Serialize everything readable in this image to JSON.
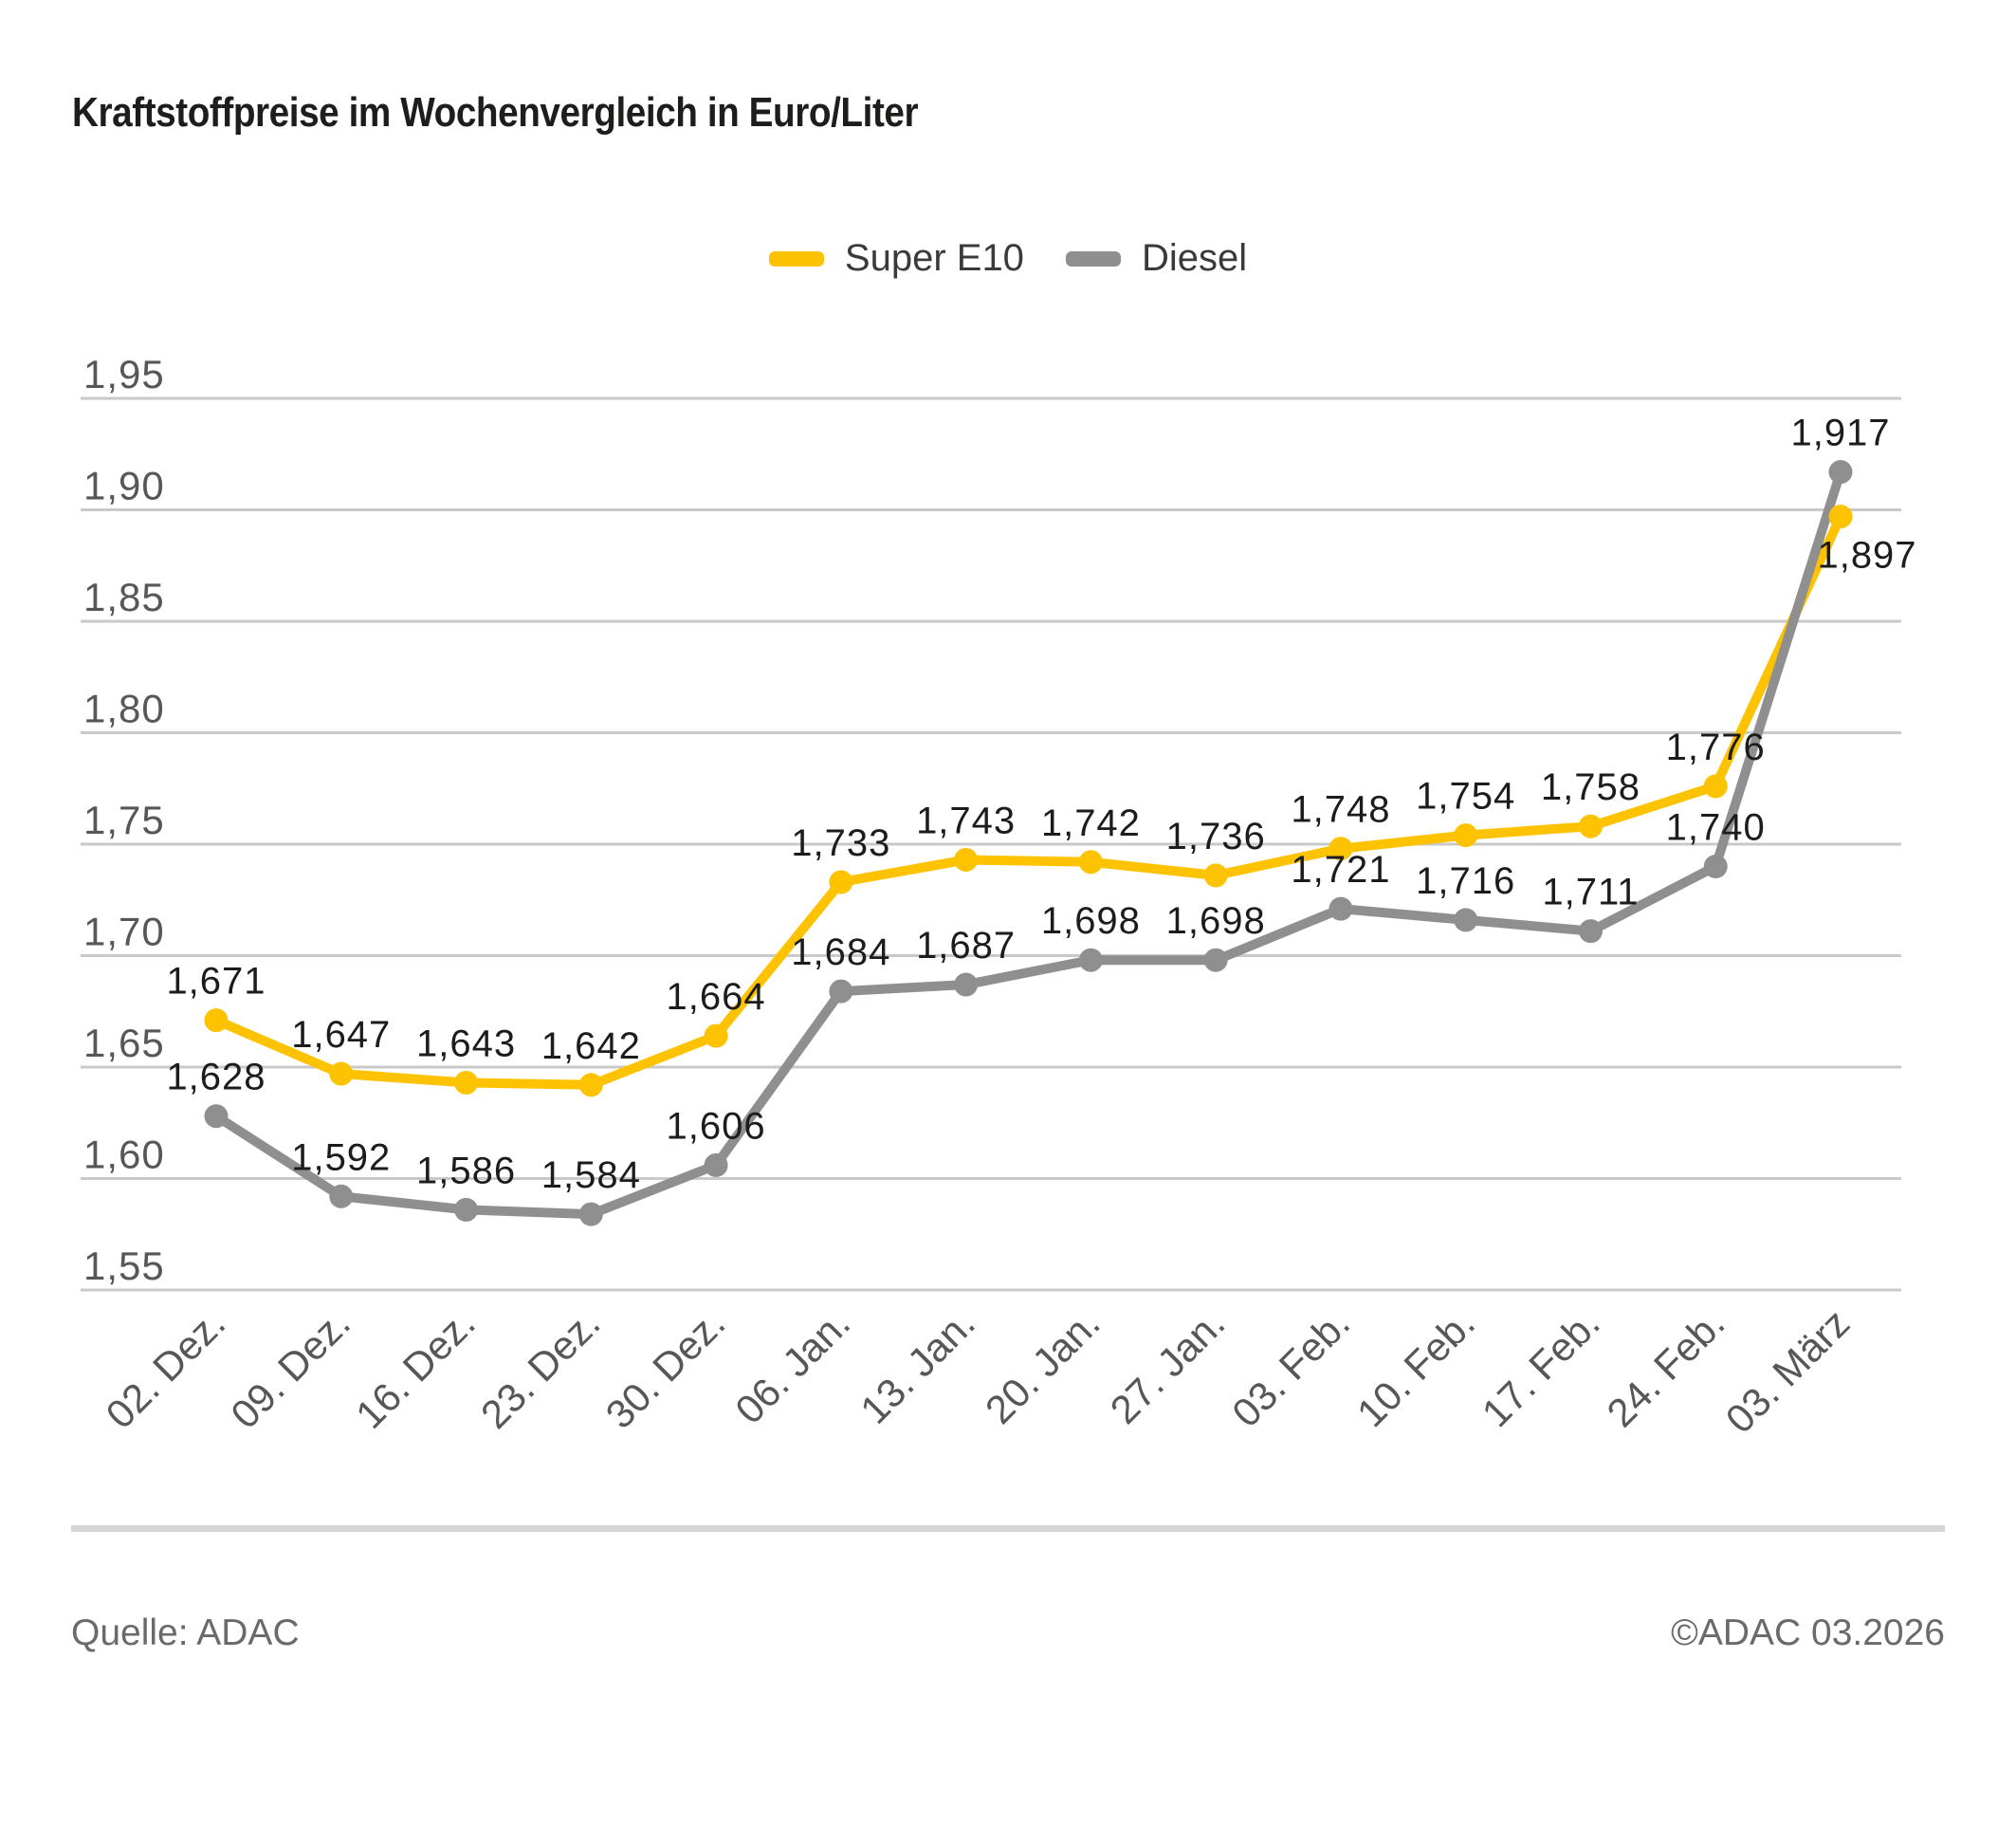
{
  "page": {
    "title": "Kraftstoffpreise im Wochenvergleich in Euro/Liter",
    "footer": {
      "source": "Quelle: ADAC",
      "copyright": "©ADAC 03.2026"
    }
  },
  "chart_data": {
    "type": "line",
    "title": "Kraftstoffpreise im Wochenvergleich in Euro/Liter",
    "unit": "Euro/Liter",
    "categories": [
      "02. Dez.",
      "09. Dez.",
      "16. Dez.",
      "23. Dez.",
      "30. Dez.",
      "06. Jan.",
      "13. Jan.",
      "20. Jan.",
      "27. Jan.",
      "03. Feb.",
      "10. Feb.",
      "17. Feb.",
      "24. Feb.",
      "03. März"
    ],
    "series": [
      {
        "name": "Super E10",
        "color": "#fdc300",
        "values": [
          1.671,
          1.647,
          1.643,
          1.642,
          1.664,
          1.733,
          1.743,
          1.742,
          1.736,
          1.748,
          1.754,
          1.758,
          1.776,
          1.897
        ],
        "labels": [
          "1,671",
          "1,647",
          "1,643",
          "1,642",
          "1,664",
          "1,733",
          "1,743",
          "1,742",
          "1,736",
          "1,748",
          "1,754",
          "1,758",
          "1,776",
          "1,897"
        ],
        "label_below_indices": [
          13
        ]
      },
      {
        "name": "Diesel",
        "color": "#8f8f8f",
        "values": [
          1.628,
          1.592,
          1.586,
          1.584,
          1.606,
          1.684,
          1.687,
          1.698,
          1.698,
          1.721,
          1.716,
          1.711,
          1.74,
          1.917
        ],
        "labels": [
          "1,628",
          "1,592",
          "1,586",
          "1,584",
          "1,606",
          "1,684",
          "1,687",
          "1,698",
          "1,698",
          "1,721",
          "1,716",
          "1,711",
          "1,740",
          "1,917"
        ],
        "label_below_indices": []
      }
    ],
    "ylim": [
      1.55,
      1.95
    ],
    "ytick_step": 0.05,
    "ytick_labels": [
      "1,95",
      "1,90",
      "1,85",
      "1,80",
      "1,75",
      "1,70",
      "1,65",
      "1,60",
      "1,55"
    ],
    "decimal_separator": ",",
    "grid": "horizontal",
    "legend_position": "top-center",
    "colors": {
      "grid_line": "#c9c9c9",
      "axis_text": "#575757",
      "value_label_text": "#1c1c1c"
    }
  }
}
